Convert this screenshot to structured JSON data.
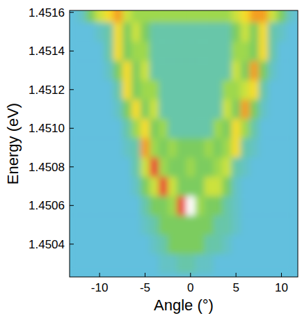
{
  "chart_data": {
    "type": "heatmap",
    "xlabel": "Angle (°)",
    "ylabel": "Energy (eV)",
    "xlim": [
      -13.3,
      11.8
    ],
    "ylim": [
      1.45023,
      1.45161
    ],
    "xticks": [
      -10,
      -5,
      0,
      5,
      10
    ],
    "yticks": [
      1.4504,
      1.4506,
      1.4508,
      {
        "value": 1.451,
        "label": "1.4510"
      },
      1.4512,
      1.4514,
      1.4516
    ],
    "x": [
      -13,
      -12,
      -11,
      -10,
      -9,
      -8,
      -7,
      -6,
      -5,
      -4,
      -3,
      -2,
      -1,
      0,
      1,
      2,
      3,
      4,
      5,
      6,
      7,
      8,
      9,
      10,
      11
    ],
    "y": [
      1.4503,
      1.4504,
      1.4505,
      1.4506,
      1.4507,
      1.4508,
      1.4509,
      1.451,
      1.4511,
      1.4512,
      1.4513,
      1.4514,
      1.4515,
      1.4516
    ],
    "zlim": [
      0,
      9
    ],
    "z": [
      [
        0,
        0,
        0,
        0,
        0,
        0,
        0,
        0,
        0,
        0,
        1,
        1,
        2,
        2,
        1,
        1,
        0,
        0,
        0,
        0,
        0,
        0,
        0,
        0,
        0
      ],
      [
        0,
        0,
        0,
        0,
        0,
        0,
        0,
        0,
        0,
        1,
        2,
        3,
        3,
        3,
        3,
        2,
        2,
        1,
        0,
        0,
        0,
        0,
        0,
        0,
        0
      ],
      [
        0,
        0,
        0,
        0,
        0,
        0,
        0,
        0,
        1,
        2,
        3,
        3,
        3,
        3,
        3,
        3,
        2,
        2,
        1,
        0,
        0,
        0,
        0,
        0,
        0
      ],
      [
        0,
        0,
        0,
        0,
        0,
        0,
        0,
        0,
        2,
        3,
        3,
        4,
        8,
        9,
        4,
        3,
        3,
        2,
        1,
        0,
        0,
        0,
        0,
        0,
        0
      ],
      [
        0,
        0,
        0,
        0,
        0,
        0,
        0,
        1,
        3,
        5,
        8,
        5,
        3,
        3,
        3,
        5,
        5,
        3,
        1,
        0,
        0,
        0,
        0,
        0,
        0
      ],
      [
        0,
        0,
        0,
        0,
        0,
        0,
        0,
        2,
        5,
        8,
        4,
        3,
        3,
        4,
        3,
        3,
        4,
        5,
        2,
        1,
        0,
        0,
        0,
        0,
        0
      ],
      [
        0,
        0,
        0,
        0,
        0,
        0,
        1,
        2,
        7,
        4,
        3,
        4,
        3,
        3,
        3,
        4,
        3,
        4,
        6,
        2,
        1,
        0,
        0,
        0,
        0
      ],
      [
        0,
        0,
        0,
        0,
        0,
        0,
        2,
        4,
        6,
        3,
        4,
        2,
        2,
        2,
        2,
        2,
        4,
        3,
        6,
        4,
        2,
        0,
        0,
        0,
        0
      ],
      [
        0,
        0,
        0,
        0,
        0,
        1,
        3,
        6,
        3,
        5,
        2,
        2,
        2,
        2,
        2,
        2,
        2,
        5,
        3,
        7,
        3,
        1,
        0,
        0,
        0
      ],
      [
        0,
        0,
        0,
        0,
        0,
        2,
        6,
        3,
        4,
        4,
        2,
        2,
        2,
        2,
        2,
        2,
        2,
        4,
        4,
        5,
        6,
        2,
        0,
        0,
        0
      ],
      [
        0,
        0,
        0,
        0,
        1,
        3,
        6,
        3,
        5,
        2,
        2,
        2,
        2,
        2,
        2,
        2,
        2,
        2,
        5,
        3,
        7,
        3,
        1,
        0,
        0
      ],
      [
        0,
        0,
        0,
        0,
        2,
        6,
        3,
        4,
        4,
        2,
        2,
        2,
        2,
        2,
        2,
        2,
        2,
        2,
        4,
        4,
        3,
        6,
        2,
        0,
        0
      ],
      [
        0,
        0,
        0,
        1,
        2,
        6,
        3,
        5,
        3,
        2,
        2,
        2,
        2,
        2,
        2,
        2,
        2,
        2,
        3,
        5,
        3,
        6,
        2,
        1,
        0
      ],
      [
        0,
        1,
        3,
        5,
        6,
        7,
        5,
        4,
        4,
        4,
        4,
        4,
        4,
        4,
        4,
        4,
        4,
        4,
        5,
        6,
        7,
        7,
        5,
        3,
        1
      ]
    ]
  }
}
